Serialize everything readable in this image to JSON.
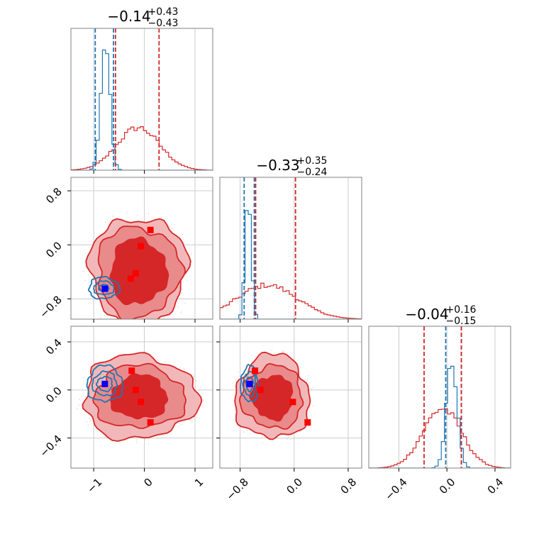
{
  "colors": {
    "posterior": "#d62728",
    "posterior_fill_light": "#f2b8b9",
    "posterior_fill_mid": "#e98a8b",
    "reference": "#1f77b4",
    "reference_dark": "#2b6cb0",
    "truth_marker": "#0000ff",
    "sample_marker": "#ff0000",
    "grid": "#cccccc",
    "frame": "#808080"
  },
  "chart_data": {
    "type": "corner",
    "parameters": [
      {
        "title_value": "−0.14",
        "title_plus": "+0.43",
        "title_minus": "−0.43",
        "median": -0.14,
        "q_low": -0.57,
        "q_high": 0.29
      },
      {
        "title_value": "−0.33",
        "title_plus": "+0.35",
        "title_minus": "−0.24",
        "median": -0.33,
        "q_low": -0.57,
        "q_high": 0.02
      },
      {
        "title_value": "−0.04",
        "title_plus": "+0.16",
        "title_minus": "−0.15",
        "median": -0.04,
        "q_low": -0.19,
        "q_high": 0.12
      }
    ],
    "ranges": [
      [
        -1.45,
        1.35
      ],
      [
        -1.1,
        1.0
      ],
      [
        -0.65,
        0.53
      ]
    ],
    "ticks": [
      {
        "values": [
          -1,
          0,
          1
        ],
        "labels": [
          "−1",
          "0",
          "1"
        ]
      },
      {
        "values": [
          -0.8,
          0.0,
          0.8
        ],
        "labels": [
          "−0.8",
          "0.0",
          "0.8"
        ]
      },
      {
        "values": [
          -0.4,
          0.0,
          0.4
        ],
        "labels": [
          "−0.4",
          "0.0",
          "0.4"
        ]
      }
    ],
    "diagonal_histograms": [
      {
        "posterior": {
          "center": -0.12,
          "sigma": 0.42,
          "peak": 0.3
        },
        "reference": {
          "center": -0.77,
          "sigma": 0.09,
          "peak": 0.9
        }
      },
      {
        "posterior": {
          "center": -0.4,
          "sigma": 0.45,
          "peak": 0.24
        },
        "reference": {
          "center": -0.68,
          "sigma": 0.045,
          "peak": 0.9
        }
      },
      {
        "posterior": {
          "center": -0.04,
          "sigma": 0.16,
          "peak": 0.42
        },
        "reference": {
          "center": 0.04,
          "sigma": 0.045,
          "peak": 0.75
        }
      }
    ],
    "vlines": [
      {
        "posterior": [
          -0.57,
          0.29
        ],
        "reference": [
          -0.97,
          -0.61
        ]
      },
      {
        "posterior": [
          -0.57,
          0.02
        ],
        "reference": [
          -0.74,
          -0.59
        ]
      },
      {
        "posterior": [
          -0.19,
          0.12
        ],
        "reference": [
          -0.01,
          0.12
        ]
      }
    ],
    "offdiagonal": [
      {
        "row": 1,
        "col": 0,
        "posterior_center": [
          -0.12,
          -0.4
        ],
        "posterior_extent": [
          [
            0.95,
            0.82
          ],
          [
            0.82,
            0.67
          ],
          [
            0.55,
            0.48
          ]
        ],
        "reference_center": [
          -0.8,
          -0.64
        ],
        "reference_extent": [
          [
            0.3,
            0.16
          ],
          [
            0.2,
            0.1
          ],
          [
            0.1,
            0.05
          ]
        ],
        "truth": [
          -0.78,
          -0.65
        ],
        "samples": [
          [
            0.12,
            0.22
          ],
          [
            -0.07,
            -0.02
          ],
          [
            -0.17,
            -0.42
          ],
          [
            -0.27,
            -0.5
          ]
        ]
      },
      {
        "row": 2,
        "col": 0,
        "posterior_center": [
          -0.1,
          -0.06
        ],
        "posterior_extent": [
          [
            1.12,
            0.35
          ],
          [
            0.9,
            0.26
          ],
          [
            0.55,
            0.18
          ]
        ],
        "reference_center": [
          -0.78,
          0.05
        ],
        "reference_extent": [
          [
            0.35,
            0.15
          ],
          [
            0.24,
            0.1
          ],
          [
            0.15,
            0.06
          ]
        ],
        "truth": [
          -0.78,
          0.05
        ],
        "samples": [
          [
            -0.25,
            0.16
          ],
          [
            -0.17,
            0.0
          ],
          [
            -0.07,
            -0.1
          ],
          [
            0.12,
            -0.27
          ]
        ]
      },
      {
        "row": 2,
        "col": 1,
        "posterior_center": [
          -0.32,
          -0.06
        ],
        "posterior_extent": [
          [
            0.55,
            0.35
          ],
          [
            0.45,
            0.26
          ],
          [
            0.3,
            0.18
          ]
        ],
        "reference_center": [
          -0.66,
          0.05
        ],
        "reference_extent": [
          [
            0.13,
            0.15
          ],
          [
            0.09,
            0.1
          ],
          [
            0.05,
            0.06
          ]
        ],
        "truth": [
          -0.66,
          0.05
        ],
        "samples": [
          [
            -0.58,
            0.16
          ],
          [
            -0.5,
            0.0
          ],
          [
            -0.02,
            -0.1
          ],
          [
            0.2,
            -0.27
          ]
        ]
      }
    ]
  }
}
